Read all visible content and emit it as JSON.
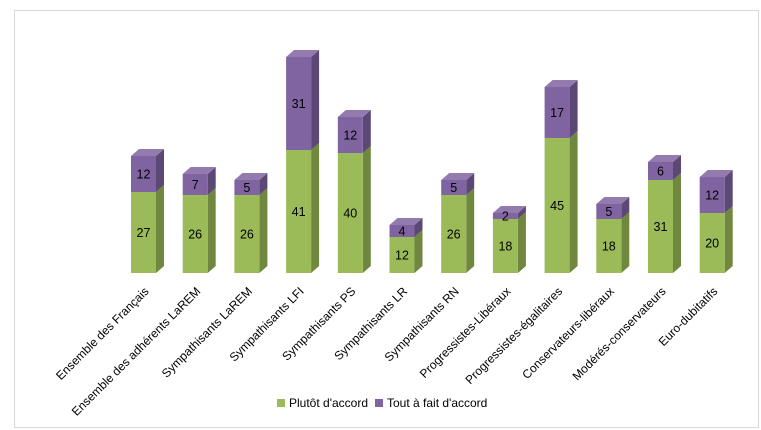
{
  "chart_data": {
    "type": "bar",
    "stacked": true,
    "three_d": true,
    "categories": [
      "Ensemble des Français",
      "Ensemble des adhérents LaREM",
      "Sympathisants LaREM",
      "Sympathisants LFI",
      "Sympathisants PS",
      "Sympathisants LR",
      "Sympathisants RN",
      "Progressistes-Libéraux",
      "Progressistes-égalitaires",
      "Conservateurs-libéraux",
      "Modérés-conservateurs",
      "Euro-dubitatifs"
    ],
    "series": [
      {
        "name": "Plutôt d'accord",
        "color": "#9bbb59",
        "values": [
          27,
          26,
          26,
          41,
          40,
          12,
          26,
          18,
          45,
          18,
          31,
          20
        ]
      },
      {
        "name": "Tout à fait d'accord",
        "color": "#8064a2",
        "values": [
          12,
          7,
          5,
          31,
          12,
          4,
          5,
          2,
          17,
          5,
          6,
          12
        ]
      }
    ],
    "title": "",
    "xlabel": "",
    "ylabel": "",
    "ylim": [
      0,
      75
    ],
    "grid": false,
    "legend": "bottom"
  }
}
